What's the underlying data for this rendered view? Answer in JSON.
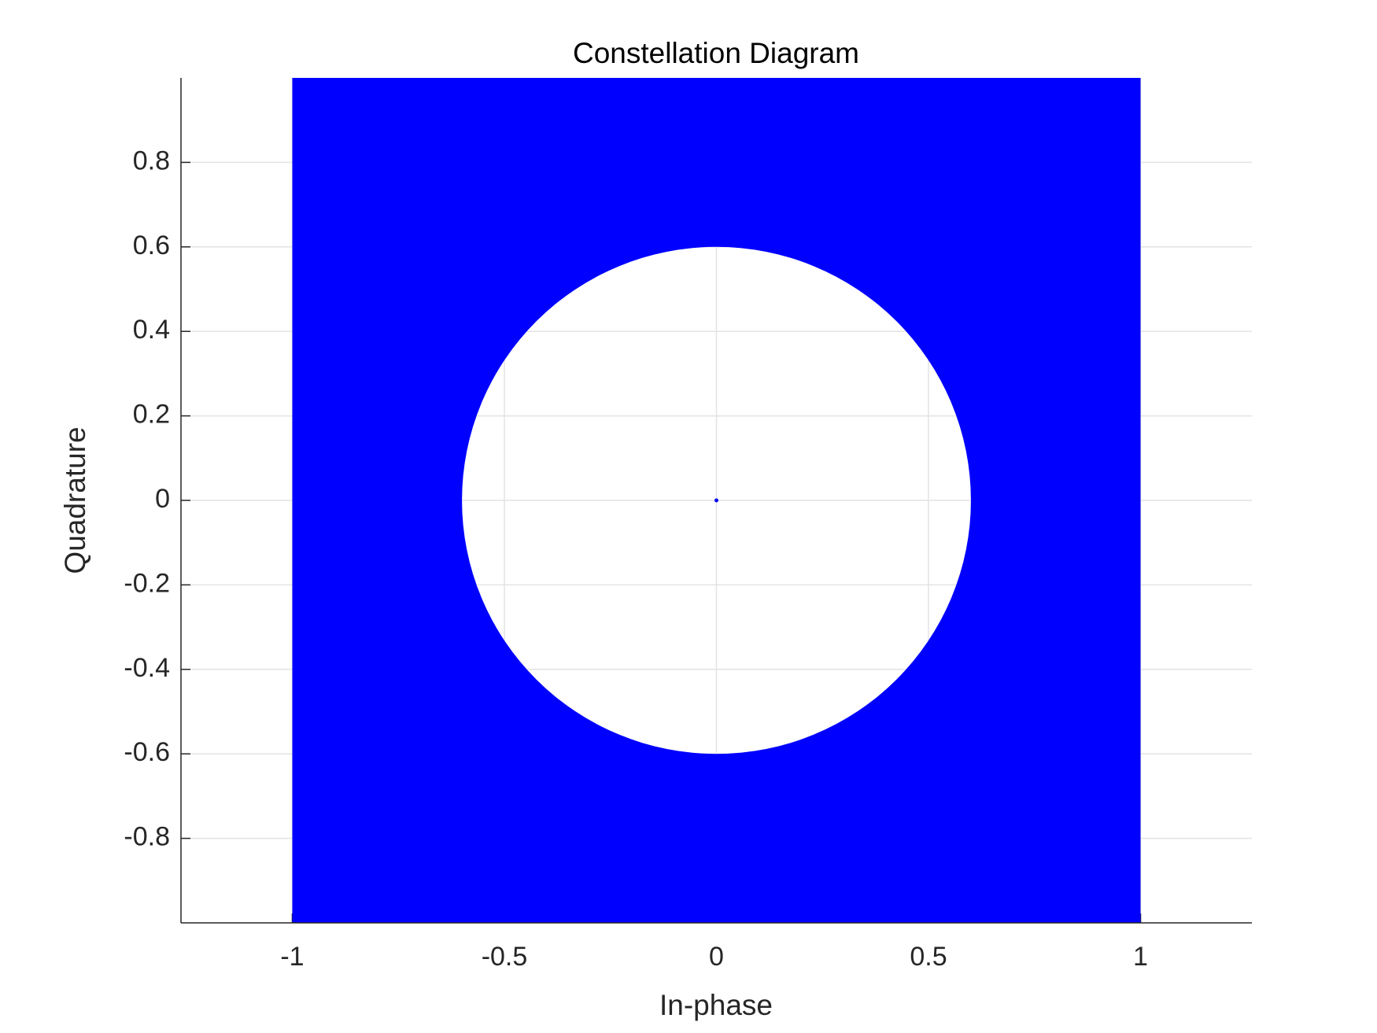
{
  "chart_data": {
    "type": "scatter",
    "title": "Constellation Diagram",
    "x_label": "In-phase",
    "y_label": "Quadrature",
    "color": "#0000ff",
    "region": {
      "x": [
        -1,
        1
      ],
      "y": [
        -1,
        1
      ],
      "hole_radius": 0.6
    },
    "points": {
      "x": [
        0
      ],
      "y": [
        0
      ]
    },
    "xlim": [
      -1.2625,
      1.2625
    ],
    "ylim": [
      -1,
      1
    ],
    "xticks": [
      -1,
      -0.5,
      0,
      0.5,
      1
    ],
    "yticks": [
      -0.8,
      -0.6,
      -0.4,
      -0.2,
      0,
      0.2,
      0.4,
      0.6,
      0.8
    ],
    "grid": true
  }
}
